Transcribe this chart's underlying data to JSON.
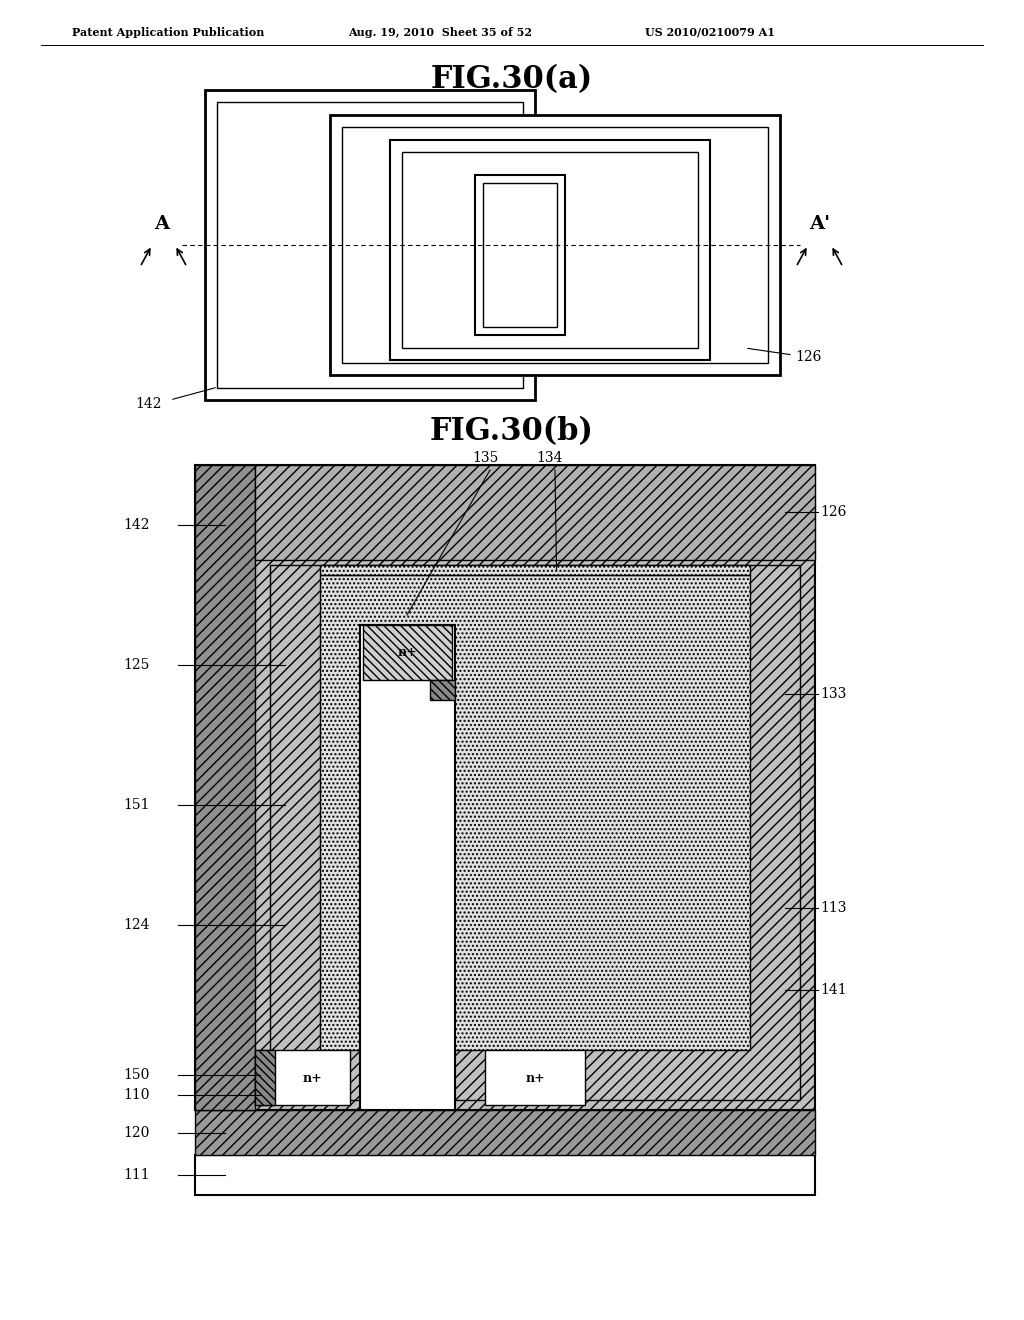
{
  "header_left": "Patent Application Publication",
  "header_mid": "Aug. 19, 2010  Sheet 35 of 52",
  "header_right": "US 2010/0210079 A1",
  "title_a": "FIG.30(a)",
  "title_b": "FIG.30(b)",
  "bg_color": "#ffffff"
}
